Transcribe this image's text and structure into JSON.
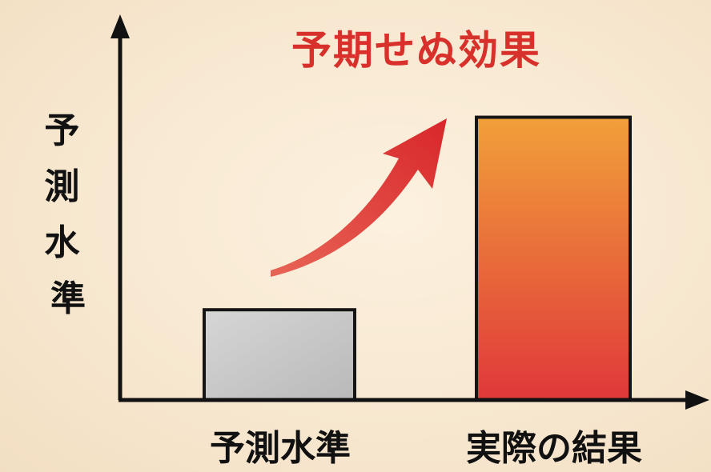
{
  "chart_data": {
    "type": "bar",
    "title": "予期せぬ効果",
    "ylabel": "予測水準",
    "xlabel": "",
    "categories": [
      "予測水準",
      "実際の結果"
    ],
    "values": [
      30,
      94
    ],
    "ylim": [
      0,
      100
    ],
    "grid": false,
    "legend": "none",
    "annotation": "rising-arrow",
    "colors": {
      "predicted_bar": "#c6c6c6",
      "actual_bar_top": "#f1a03a",
      "actual_bar_bottom": "#e0383a",
      "arrow": "#de3030",
      "title": "#d8302b",
      "axis": "#111111"
    }
  }
}
